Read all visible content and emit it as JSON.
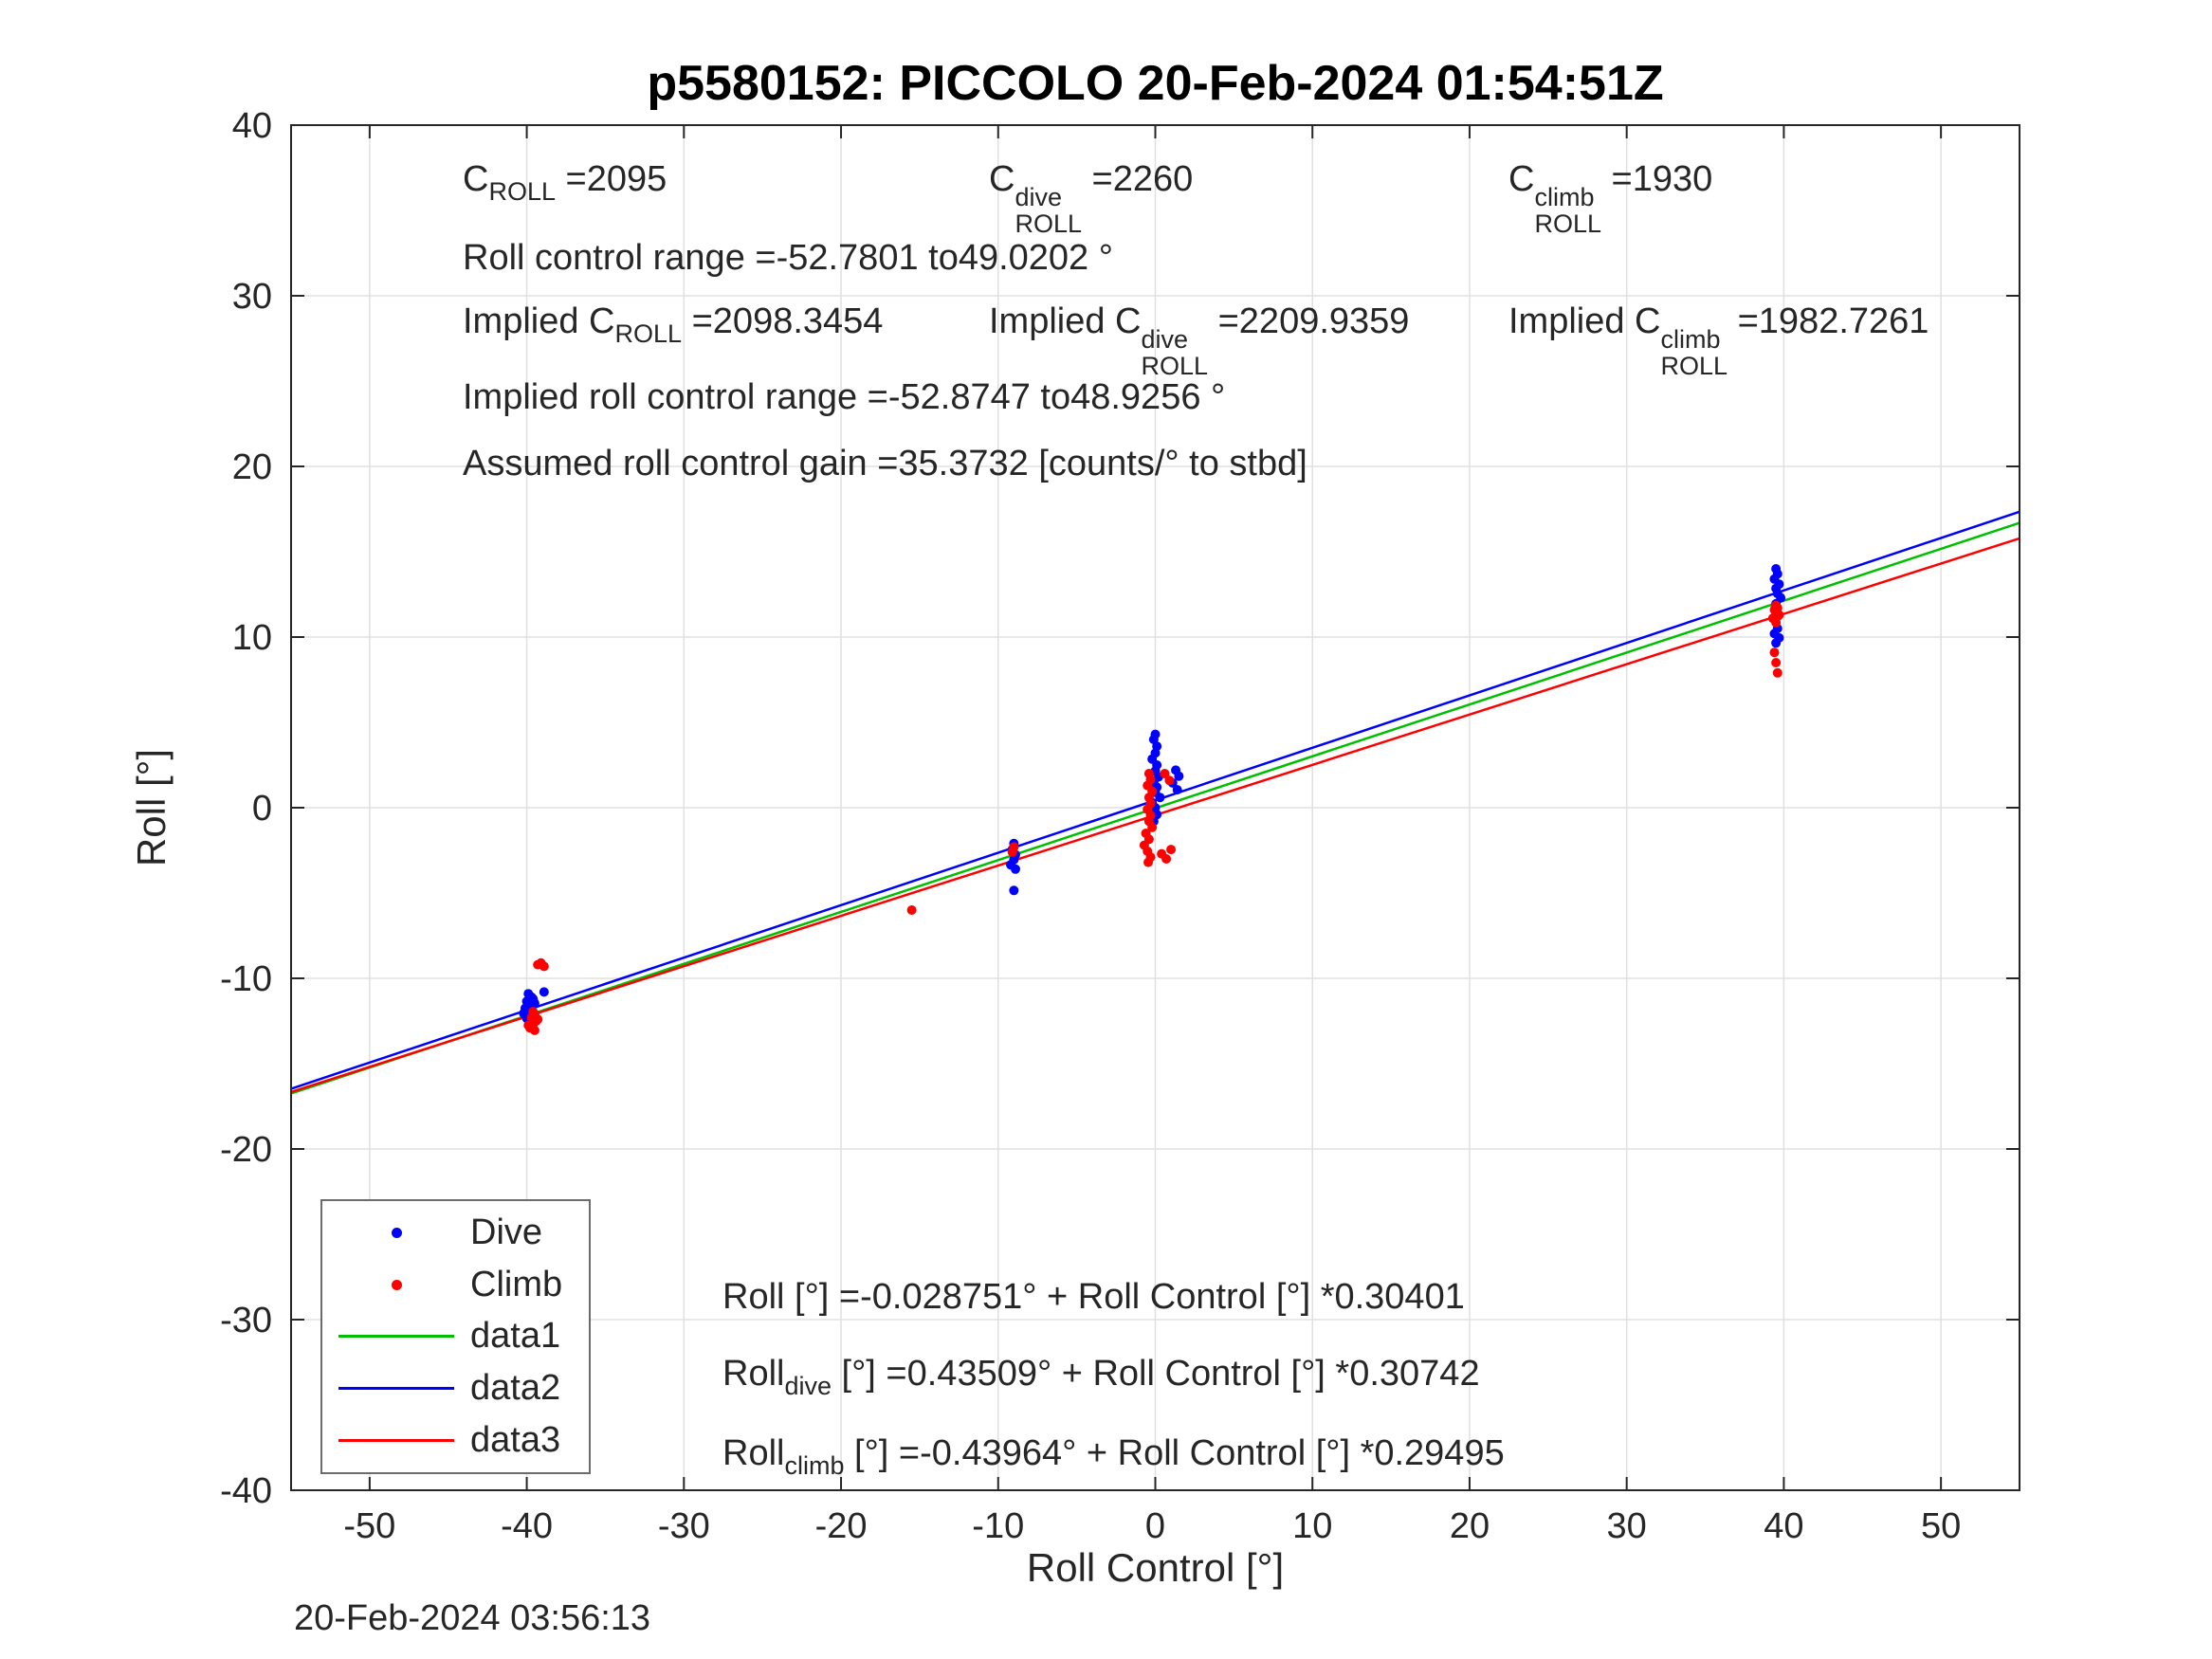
{
  "title": "p5580152: PICCOLO 20-Feb-2024 01:54:51Z",
  "timestamp": "20-Feb-2024 03:56:13",
  "chart_data": {
    "type": "scatter",
    "title": "p5580152: PICCOLO 20-Feb-2024 01:54:51Z",
    "xlabel": "Roll Control [°]",
    "ylabel": "Roll [°]",
    "xlim": [
      -55,
      55
    ],
    "ylim": [
      -40,
      40
    ],
    "xticks": [
      -50,
      -40,
      -30,
      -20,
      -10,
      0,
      10,
      20,
      30,
      40,
      50
    ],
    "yticks": [
      -40,
      -30,
      -20,
      -10,
      0,
      10,
      20,
      30,
      40
    ],
    "grid": true,
    "grid_color": "#e0e0e0",
    "axis_color": "#262626",
    "annotations": {
      "c_roll": {
        "pre": "C",
        "sub": "ROLL",
        "val": " =2095"
      },
      "c_roll_dive": {
        "pre": "C",
        "sup": "dive",
        "sub": "ROLL",
        "val": " =2260"
      },
      "c_roll_climb": {
        "pre": "C",
        "sup": "climb",
        "sub": "ROLL",
        "val": " =1930"
      },
      "roll_range": "Roll control range =-52.7801 to49.0202 °",
      "implied_c_roll": {
        "pre": "Implied C",
        "sub": "ROLL",
        "val": " =2098.3454"
      },
      "implied_c_roll_dive": {
        "pre": "Implied C",
        "sup": "dive",
        "sub": "ROLL",
        "val": " =2209.9359"
      },
      "implied_c_roll_climb": {
        "pre": "Implied C",
        "sup": "climb",
        "sub": "ROLL",
        "val": " =1982.7261"
      },
      "implied_range": "Implied roll control range =-52.8747 to48.9256 °",
      "gain": "Assumed roll control gain =35.3732 [counts/° to stbd]"
    },
    "equations": [
      {
        "pre": "Roll [°] =",
        "sub": "",
        "rest": "-0.028751° + Roll Control [°] *0.30401"
      },
      {
        "pre": "Roll",
        "sub": "dive",
        "rest": " [°] =0.43509° + Roll Control [°] *0.30742"
      },
      {
        "pre": "Roll",
        "sub": "climb",
        "rest": " [°] =-0.43964° + Roll Control [°] *0.29495"
      }
    ],
    "legend": [
      {
        "label": "Dive",
        "marker": "dot",
        "color": "#0000ff"
      },
      {
        "label": "Climb",
        "marker": "dot",
        "color": "#ff0000"
      },
      {
        "label": "data1",
        "marker": "line",
        "color": "#00bf00"
      },
      {
        "label": "data2",
        "marker": "line",
        "color": "#0000ff"
      },
      {
        "label": "data3",
        "marker": "line",
        "color": "#ff0000"
      }
    ],
    "lines": [
      {
        "name": "data1",
        "color": "#00bf00",
        "intercept": -0.028751,
        "slope": 0.30401
      },
      {
        "name": "data2",
        "color": "#0000ff",
        "intercept": 0.43509,
        "slope": 0.30742
      },
      {
        "name": "data3",
        "color": "#ff0000",
        "intercept": -0.43964,
        "slope": 0.29495
      }
    ],
    "scatter": [
      {
        "name": "Dive",
        "color": "#0000ff",
        "points": [
          [
            -39.9,
            -10.9
          ],
          [
            -39.7,
            -11.1
          ],
          [
            -40.0,
            -11.35
          ],
          [
            -39.8,
            -11.55
          ],
          [
            -39.6,
            -11.2
          ],
          [
            -40.1,
            -11.75
          ],
          [
            -39.9,
            -11.95
          ],
          [
            -39.7,
            -12.15
          ],
          [
            -40.0,
            -12.35
          ],
          [
            -39.8,
            -12.55
          ],
          [
            -39.5,
            -11.45
          ],
          [
            -40.2,
            -12.05
          ],
          [
            -39.6,
            -12.45
          ],
          [
            -38.9,
            -10.8
          ],
          [
            -9.0,
            -2.1
          ],
          [
            -9.1,
            -2.45
          ],
          [
            -8.9,
            -2.75
          ],
          [
            -9.0,
            -3.05
          ],
          [
            -9.2,
            -3.35
          ],
          [
            -8.9,
            -3.6
          ],
          [
            -9.0,
            -4.85
          ],
          [
            0.0,
            4.3
          ],
          [
            -0.1,
            4.0
          ],
          [
            0.1,
            3.6
          ],
          [
            0.0,
            3.2
          ],
          [
            -0.2,
            2.85
          ],
          [
            0.1,
            2.5
          ],
          [
            0.0,
            2.15
          ],
          [
            0.2,
            1.8
          ],
          [
            -0.1,
            1.5
          ],
          [
            0.1,
            1.2
          ],
          [
            0.0,
            0.9
          ],
          [
            0.3,
            0.6
          ],
          [
            -0.2,
            0.3
          ],
          [
            0.0,
            0.0
          ],
          [
            0.1,
            -0.4
          ],
          [
            -0.1,
            -0.8
          ],
          [
            1.3,
            2.2
          ],
          [
            1.5,
            1.85
          ],
          [
            1.1,
            1.45
          ],
          [
            1.4,
            1.05
          ],
          [
            39.5,
            14.0
          ],
          [
            39.6,
            13.7
          ],
          [
            39.4,
            13.4
          ],
          [
            39.7,
            13.1
          ],
          [
            39.5,
            12.85
          ],
          [
            39.6,
            12.55
          ],
          [
            39.8,
            12.3
          ],
          [
            39.5,
            11.95
          ],
          [
            39.6,
            10.5
          ],
          [
            39.4,
            10.2
          ],
          [
            39.7,
            9.95
          ],
          [
            39.5,
            9.65
          ]
        ]
      },
      {
        "name": "Climb",
        "color": "#ff0000",
        "points": [
          [
            -39.1,
            -9.1
          ],
          [
            -38.9,
            -9.3
          ],
          [
            -39.3,
            -9.2
          ],
          [
            -39.5,
            -12.1
          ],
          [
            -39.7,
            -12.3
          ],
          [
            -39.4,
            -12.5
          ],
          [
            -39.6,
            -12.7
          ],
          [
            -39.8,
            -12.9
          ],
          [
            -39.5,
            -13.05
          ],
          [
            -39.3,
            -12.4
          ],
          [
            -39.9,
            -12.75
          ],
          [
            -39.6,
            -11.95
          ],
          [
            -15.5,
            -6.0
          ],
          [
            -9.0,
            -2.3
          ],
          [
            -9.1,
            -2.6
          ],
          [
            -0.4,
            2.0
          ],
          [
            -0.3,
            1.65
          ],
          [
            -0.5,
            1.3
          ],
          [
            -0.2,
            0.95
          ],
          [
            -0.4,
            0.6
          ],
          [
            -0.3,
            0.25
          ],
          [
            -0.5,
            -0.1
          ],
          [
            -0.3,
            -0.45
          ],
          [
            -0.4,
            -0.8
          ],
          [
            -0.2,
            -1.15
          ],
          [
            -0.6,
            -1.5
          ],
          [
            -0.4,
            -1.85
          ],
          [
            -0.7,
            -2.2
          ],
          [
            -0.5,
            -2.55
          ],
          [
            -0.3,
            -2.9
          ],
          [
            -0.45,
            -3.2
          ],
          [
            0.6,
            2.0
          ],
          [
            0.9,
            1.6
          ],
          [
            0.4,
            -2.7
          ],
          [
            0.7,
            -3.0
          ],
          [
            1.0,
            -2.45
          ],
          [
            39.4,
            11.6
          ],
          [
            39.5,
            11.4
          ],
          [
            39.6,
            11.2
          ],
          [
            39.45,
            11.0
          ],
          [
            39.55,
            11.5
          ],
          [
            39.7,
            11.3
          ],
          [
            39.3,
            11.1
          ],
          [
            39.5,
            10.85
          ],
          [
            39.6,
            11.7
          ],
          [
            39.5,
            11.85
          ],
          [
            39.4,
            9.1
          ],
          [
            39.5,
            8.5
          ],
          [
            39.6,
            7.9
          ]
        ]
      }
    ]
  }
}
